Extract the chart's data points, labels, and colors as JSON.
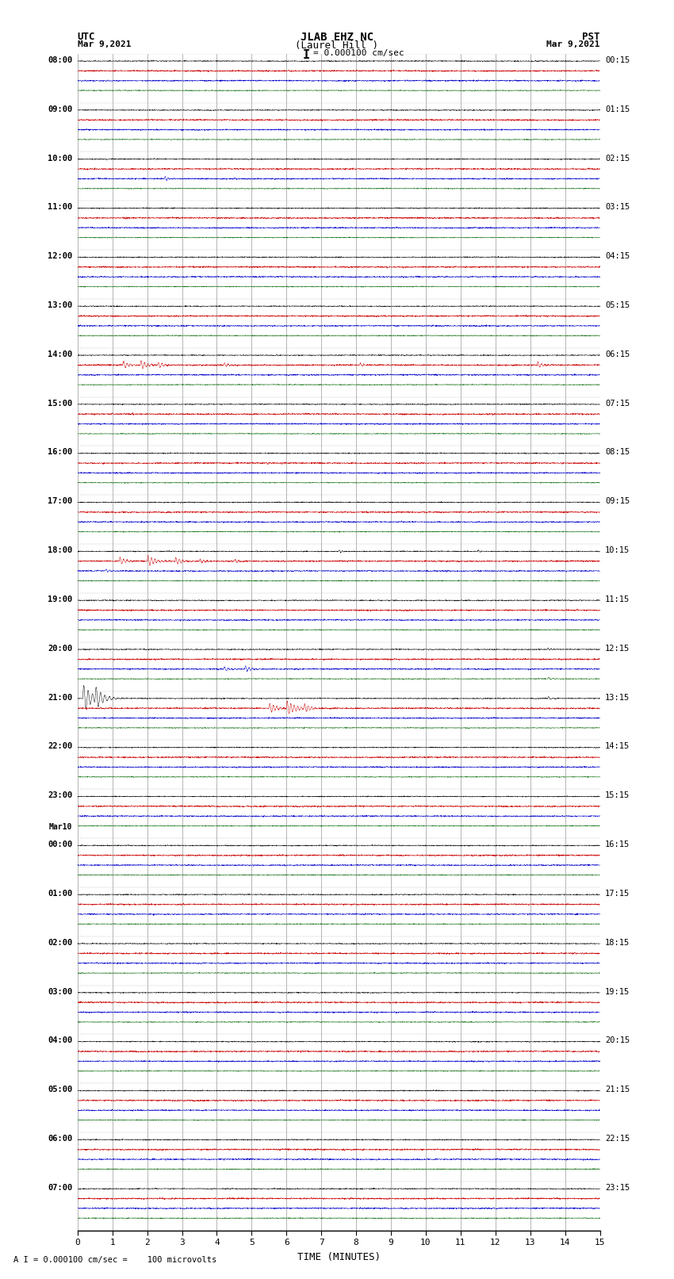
{
  "title_line1": "JLAB EHZ NC",
  "title_line2": "(Laurel Hill )",
  "scale_label": "= 0.000100 cm/sec",
  "left_label_line1": "UTC",
  "left_label_line2": "Mar 9,2021",
  "right_label_line1": "PST",
  "right_label_line2": "Mar 9,2021",
  "bottom_label": "TIME (MINUTES)",
  "footnote": "A I = 0.000100 cm/sec =    100 microvolts",
  "utc_times": [
    "08:00",
    "09:00",
    "10:00",
    "11:00",
    "12:00",
    "13:00",
    "14:00",
    "15:00",
    "16:00",
    "17:00",
    "18:00",
    "19:00",
    "20:00",
    "21:00",
    "22:00",
    "23:00",
    "Mar10",
    "00:00",
    "01:00",
    "02:00",
    "03:00",
    "04:00",
    "05:00",
    "06:00",
    "07:00"
  ],
  "pst_times": [
    "00:15",
    "01:15",
    "02:15",
    "03:15",
    "04:15",
    "05:15",
    "06:15",
    "07:15",
    "08:15",
    "09:15",
    "10:15",
    "11:15",
    "12:15",
    "13:15",
    "14:15",
    "15:15",
    "16:15",
    "17:15",
    "18:15",
    "19:15",
    "20:15",
    "21:15",
    "22:15",
    "23:15"
  ],
  "num_rows": 24,
  "traces_per_row": 4,
  "minutes": 15,
  "background_color": "#ffffff",
  "trace_colors": [
    "#000000",
    "#cc0000",
    "#0000cc",
    "#006600"
  ],
  "grid_color": "#999999",
  "noise_amps": [
    0.6,
    0.9,
    0.8,
    0.5
  ],
  "lw": 0.35
}
